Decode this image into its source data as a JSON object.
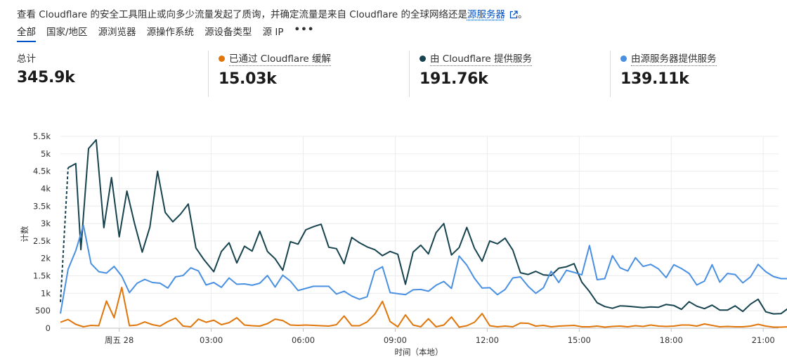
{
  "description": {
    "text": "查看 Cloudflare 的安全工具阻止或向多少流量发起了质询，并确定流量是来自 Cloudflare 的全球网络还是",
    "link": "源服务器",
    "suffix": "。",
    "ext_icon": "external-link-icon"
  },
  "tabs": [
    {
      "label": "全部",
      "active": true
    },
    {
      "label": "国家/地区"
    },
    {
      "label": "源浏览器"
    },
    {
      "label": "源操作系统"
    },
    {
      "label": "源设备类型"
    },
    {
      "label": "源 IP"
    },
    {
      "label": "•••"
    }
  ],
  "stats": [
    {
      "label": "总计",
      "value": "345.9k",
      "color": ""
    },
    {
      "label": "已通过 Cloudflare 缓解",
      "value": "15.03k",
      "color": "#e0760a"
    },
    {
      "label": "由 Cloudflare 提供服务",
      "value": "191.76k",
      "color": "#16434e"
    },
    {
      "label": "由源服务器提供服务",
      "value": "139.11k",
      "color": "#4a90e2"
    }
  ],
  "chart_data": {
    "type": "line",
    "ylabel": "计数",
    "xlabel": "时间（本地）",
    "ylim": [
      0,
      5500
    ],
    "y_ticks": [
      "0",
      "500",
      "1k",
      "1.5k",
      "2k",
      "2.5k",
      "3k",
      "3.5k",
      "4k",
      "4.5k",
      "5k",
      "5.5k"
    ],
    "x_ticks": [
      {
        "label": "周五 28",
        "index": 23
      },
      {
        "label": "03:00",
        "index": 59
      },
      {
        "label": "06:00",
        "index": 95
      },
      {
        "label": "09:00",
        "index": 131
      },
      {
        "label": "12:00",
        "index": 167
      },
      {
        "label": "15:00",
        "index": 203
      },
      {
        "label": "18:00",
        "index": 239
      },
      {
        "label": "21:00",
        "index": 275
      }
    ],
    "x_count": 282,
    "grid": true,
    "series": [
      {
        "name": "由 Cloudflare 提供服务",
        "color": "#16434e",
        "dashed_until": 3,
        "points": [
          [
            0,
            750
          ],
          [
            3,
            4600
          ],
          [
            6,
            4720
          ],
          [
            8,
            2250
          ],
          [
            11,
            5150
          ],
          [
            14,
            5400
          ],
          [
            17,
            2880
          ],
          [
            20,
            4320
          ],
          [
            23,
            2620
          ],
          [
            26,
            3930
          ],
          [
            29,
            3000
          ],
          [
            32,
            2180
          ],
          [
            35,
            2900
          ],
          [
            38,
            4500
          ],
          [
            41,
            3320
          ],
          [
            44,
            3050
          ],
          [
            47,
            3270
          ],
          [
            50,
            3560
          ],
          [
            53,
            2300
          ],
          [
            56,
            1980
          ],
          [
            60,
            1620
          ],
          [
            63,
            2200
          ],
          [
            66,
            2450
          ],
          [
            69,
            1870
          ],
          [
            72,
            2350
          ],
          [
            75,
            2210
          ],
          [
            78,
            2780
          ],
          [
            81,
            2200
          ],
          [
            84,
            1990
          ],
          [
            87,
            1660
          ],
          [
            90,
            2480
          ],
          [
            93,
            2410
          ],
          [
            96,
            2820
          ],
          [
            99,
            2910
          ],
          [
            102,
            2980
          ],
          [
            105,
            2320
          ],
          [
            108,
            2280
          ],
          [
            111,
            1850
          ],
          [
            114,
            2600
          ],
          [
            117,
            2450
          ],
          [
            120,
            2330
          ],
          [
            123,
            2250
          ],
          [
            126,
            2080
          ],
          [
            129,
            2200
          ],
          [
            132,
            2120
          ],
          [
            135,
            1260
          ],
          [
            138,
            2180
          ],
          [
            141,
            2380
          ],
          [
            144,
            2130
          ],
          [
            147,
            2740
          ],
          [
            150,
            3000
          ],
          [
            153,
            2100
          ],
          [
            156,
            2310
          ],
          [
            159,
            2890
          ],
          [
            162,
            2290
          ],
          [
            165,
            1920
          ],
          [
            168,
            2500
          ],
          [
            171,
            2420
          ],
          [
            174,
            2580
          ],
          [
            177,
            2240
          ],
          [
            180,
            1590
          ],
          [
            183,
            1540
          ],
          [
            186,
            1630
          ],
          [
            189,
            1530
          ],
          [
            192,
            1510
          ],
          [
            195,
            1720
          ],
          [
            198,
            1760
          ],
          [
            201,
            1850
          ],
          [
            204,
            1320
          ],
          [
            207,
            1050
          ],
          [
            210,
            730
          ],
          [
            213,
            620
          ],
          [
            216,
            570
          ],
          [
            219,
            640
          ],
          [
            222,
            630
          ],
          [
            225,
            610
          ],
          [
            228,
            590
          ],
          [
            231,
            610
          ],
          [
            234,
            600
          ],
          [
            237,
            680
          ],
          [
            240,
            650
          ],
          [
            243,
            540
          ],
          [
            246,
            760
          ],
          [
            249,
            630
          ],
          [
            252,
            560
          ],
          [
            255,
            660
          ],
          [
            258,
            520
          ],
          [
            261,
            520
          ],
          [
            264,
            640
          ],
          [
            267,
            480
          ],
          [
            270,
            690
          ],
          [
            273,
            830
          ],
          [
            276,
            470
          ],
          [
            279,
            410
          ],
          [
            282,
            420
          ],
          [
            285,
            580
          ],
          [
            288,
            410
          ]
        ]
      },
      {
        "name": "由源服务器提供服务",
        "color": "#4a90e2",
        "points": [
          [
            0,
            420
          ],
          [
            3,
            1690
          ],
          [
            6,
            2220
          ],
          [
            9,
            2950
          ],
          [
            12,
            1850
          ],
          [
            15,
            1620
          ],
          [
            18,
            1580
          ],
          [
            21,
            1770
          ],
          [
            24,
            1490
          ],
          [
            27,
            1020
          ],
          [
            30,
            1290
          ],
          [
            33,
            1400
          ],
          [
            36,
            1310
          ],
          [
            39,
            1290
          ],
          [
            42,
            1150
          ],
          [
            45,
            1470
          ],
          [
            48,
            1510
          ],
          [
            51,
            1730
          ],
          [
            54,
            1640
          ],
          [
            57,
            1240
          ],
          [
            60,
            1310
          ],
          [
            63,
            1170
          ],
          [
            66,
            1440
          ],
          [
            69,
            1260
          ],
          [
            72,
            1270
          ],
          [
            75,
            1230
          ],
          [
            78,
            1290
          ],
          [
            81,
            1510
          ],
          [
            84,
            1180
          ],
          [
            87,
            1520
          ],
          [
            90,
            1350
          ],
          [
            93,
            1080
          ],
          [
            96,
            1140
          ],
          [
            99,
            1200
          ],
          [
            102,
            1200
          ],
          [
            105,
            1200
          ],
          [
            108,
            980
          ],
          [
            111,
            1060
          ],
          [
            114,
            920
          ],
          [
            117,
            830
          ],
          [
            120,
            900
          ],
          [
            123,
            1640
          ],
          [
            126,
            1760
          ],
          [
            129,
            1020
          ],
          [
            132,
            990
          ],
          [
            135,
            960
          ],
          [
            138,
            1100
          ],
          [
            141,
            1110
          ],
          [
            144,
            1060
          ],
          [
            147,
            1230
          ],
          [
            150,
            1340
          ],
          [
            153,
            1140
          ],
          [
            156,
            2070
          ],
          [
            159,
            1810
          ],
          [
            162,
            1430
          ],
          [
            165,
            1150
          ],
          [
            168,
            1160
          ],
          [
            171,
            960
          ],
          [
            174,
            1110
          ],
          [
            177,
            1440
          ],
          [
            180,
            1470
          ],
          [
            183,
            1200
          ],
          [
            186,
            1000
          ],
          [
            189,
            1160
          ],
          [
            192,
            1630
          ],
          [
            195,
            1310
          ],
          [
            198,
            1660
          ],
          [
            201,
            1600
          ],
          [
            204,
            1530
          ],
          [
            207,
            2370
          ],
          [
            210,
            1390
          ],
          [
            213,
            1420
          ],
          [
            216,
            2080
          ],
          [
            219,
            1730
          ],
          [
            222,
            1640
          ],
          [
            225,
            2020
          ],
          [
            228,
            1770
          ],
          [
            231,
            1830
          ],
          [
            234,
            1700
          ],
          [
            237,
            1450
          ],
          [
            240,
            1820
          ],
          [
            243,
            1710
          ],
          [
            246,
            1570
          ],
          [
            249,
            1240
          ],
          [
            252,
            1350
          ],
          [
            255,
            1820
          ],
          [
            258,
            1320
          ],
          [
            261,
            1570
          ],
          [
            264,
            1540
          ],
          [
            267,
            1300
          ],
          [
            270,
            1470
          ],
          [
            273,
            1830
          ],
          [
            276,
            1620
          ],
          [
            279,
            1480
          ],
          [
            282,
            1420
          ],
          [
            285,
            1420
          ],
          [
            288,
            1250
          ]
        ]
      },
      {
        "name": "已通过 Cloudflare 缓解",
        "color": "#e0760a",
        "points": [
          [
            0,
            170
          ],
          [
            3,
            250
          ],
          [
            6,
            110
          ],
          [
            9,
            40
          ],
          [
            12,
            80
          ],
          [
            15,
            70
          ],
          [
            18,
            780
          ],
          [
            21,
            300
          ],
          [
            24,
            1170
          ],
          [
            27,
            70
          ],
          [
            30,
            90
          ],
          [
            33,
            180
          ],
          [
            36,
            100
          ],
          [
            39,
            60
          ],
          [
            42,
            190
          ],
          [
            45,
            290
          ],
          [
            48,
            60
          ],
          [
            51,
            40
          ],
          [
            54,
            260
          ],
          [
            57,
            170
          ],
          [
            60,
            230
          ],
          [
            63,
            100
          ],
          [
            66,
            160
          ],
          [
            69,
            300
          ],
          [
            72,
            90
          ],
          [
            75,
            70
          ],
          [
            78,
            60
          ],
          [
            81,
            130
          ],
          [
            84,
            260
          ],
          [
            87,
            220
          ],
          [
            90,
            90
          ],
          [
            93,
            80
          ],
          [
            96,
            90
          ],
          [
            99,
            80
          ],
          [
            102,
            70
          ],
          [
            105,
            60
          ],
          [
            108,
            100
          ],
          [
            111,
            350
          ],
          [
            114,
            70
          ],
          [
            117,
            70
          ],
          [
            120,
            180
          ],
          [
            123,
            400
          ],
          [
            126,
            770
          ],
          [
            129,
            190
          ],
          [
            132,
            40
          ],
          [
            135,
            380
          ],
          [
            138,
            90
          ],
          [
            141,
            40
          ],
          [
            144,
            270
          ],
          [
            147,
            40
          ],
          [
            150,
            90
          ],
          [
            153,
            320
          ],
          [
            156,
            30
          ],
          [
            159,
            70
          ],
          [
            162,
            170
          ],
          [
            165,
            420
          ],
          [
            168,
            70
          ],
          [
            171,
            40
          ],
          [
            174,
            60
          ],
          [
            177,
            40
          ],
          [
            180,
            150
          ],
          [
            183,
            140
          ],
          [
            186,
            60
          ],
          [
            189,
            80
          ],
          [
            192,
            40
          ],
          [
            195,
            60
          ],
          [
            198,
            70
          ],
          [
            201,
            80
          ],
          [
            204,
            40
          ],
          [
            207,
            40
          ],
          [
            210,
            60
          ],
          [
            213,
            30
          ],
          [
            216,
            50
          ],
          [
            219,
            60
          ],
          [
            222,
            40
          ],
          [
            225,
            70
          ],
          [
            228,
            50
          ],
          [
            231,
            90
          ],
          [
            234,
            60
          ],
          [
            237,
            50
          ],
          [
            240,
            60
          ],
          [
            243,
            90
          ],
          [
            246,
            90
          ],
          [
            249,
            60
          ],
          [
            252,
            120
          ],
          [
            255,
            80
          ],
          [
            258,
            40
          ],
          [
            261,
            50
          ],
          [
            264,
            40
          ],
          [
            267,
            40
          ],
          [
            270,
            60
          ],
          [
            273,
            110
          ],
          [
            276,
            60
          ],
          [
            279,
            30
          ],
          [
            282,
            30
          ],
          [
            285,
            40
          ],
          [
            288,
            50
          ]
        ]
      }
    ]
  }
}
